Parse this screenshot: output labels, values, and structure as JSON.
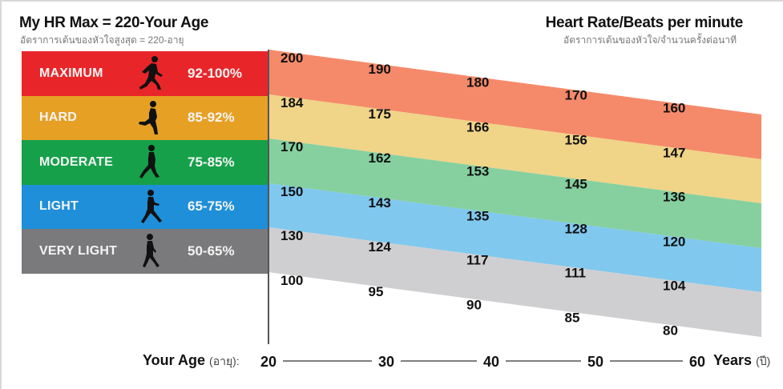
{
  "header": {
    "title": "My HR Max = 220-Your Age",
    "subtitle": "อัตราการเต้นของหัวใจสูงสุด = 220-อายุ",
    "right_title": "Heart Rate/Beats per minute",
    "right_subtitle": "อัตราการเต้นของหัวใจ/จำนวนครั้งต่อนาที"
  },
  "zones": [
    {
      "name": "MAXIMUM",
      "range": "92-100%",
      "color": "#e8262a",
      "band_color": "#f58a6a",
      "icon": "running-figure-icon"
    },
    {
      "name": "HARD",
      "range": "85-92%",
      "color": "#e6a024",
      "band_color": "#f0d488",
      "icon": "running-figure-icon"
    },
    {
      "name": "MODERATE",
      "range": "75-85%",
      "color": "#16a04a",
      "band_color": "#86d0a0",
      "icon": "jogging-figure-icon"
    },
    {
      "name": "LIGHT",
      "range": "65-75%",
      "color": "#1e8fd8",
      "band_color": "#80c8ee",
      "icon": "walking-figure-icon"
    },
    {
      "name": "VERY LIGHT",
      "range": "50-65%",
      "color": "#7a7a7c",
      "band_color": "#cfcfd1",
      "icon": "walking-figure-icon"
    }
  ],
  "chart_data": {
    "type": "area",
    "title": "Heart Rate/Beats per minute",
    "xlabel": "Your Age (อายุ):",
    "xlabel_main": "Your Age",
    "xlabel_thai": "(อายุ):",
    "x_unit_main": "Years",
    "x_unit_thai": "(ปี)",
    "x": [
      20,
      30,
      40,
      50,
      60
    ],
    "x_tick_labels": [
      "20",
      "30",
      "40",
      "50",
      "60"
    ],
    "boundaries": [
      {
        "name": "MAXIMUM top",
        "values": [
          200,
          190,
          180,
          170,
          160
        ],
        "labels": [
          "200",
          "190",
          "180",
          "170",
          "160"
        ]
      },
      {
        "name": "HARD top",
        "values": [
          184,
          175,
          166,
          156,
          147
        ],
        "labels": [
          "184",
          "175",
          "166",
          "156",
          "147"
        ]
      },
      {
        "name": "MODERATE top",
        "values": [
          170,
          162,
          153,
          145,
          136
        ],
        "labels": [
          "170",
          "162",
          "153",
          "145",
          "136"
        ]
      },
      {
        "name": "LIGHT top",
        "values": [
          150,
          143,
          135,
          128,
          120
        ],
        "labels": [
          "150",
          "143",
          "135",
          "128",
          "120"
        ]
      },
      {
        "name": "VERY LIGHT top",
        "values": [
          130,
          124,
          117,
          111,
          104
        ],
        "labels": [
          "130",
          "124",
          "117",
          "111",
          "104"
        ]
      },
      {
        "name": "VERY LIGHT bottom",
        "values": [
          100,
          95,
          90,
          85,
          80
        ],
        "labels": [
          "100",
          "95",
          "90",
          "85",
          "80"
        ]
      }
    ],
    "series": [
      {
        "name": "MAXIMUM",
        "upper": [
          200,
          190,
          180,
          170,
          160
        ],
        "lower": [
          184,
          175,
          166,
          156,
          147
        ]
      },
      {
        "name": "HARD",
        "upper": [
          184,
          175,
          166,
          156,
          147
        ],
        "lower": [
          170,
          162,
          153,
          145,
          136
        ]
      },
      {
        "name": "MODERATE",
        "upper": [
          170,
          162,
          153,
          145,
          136
        ],
        "lower": [
          150,
          143,
          135,
          128,
          120
        ]
      },
      {
        "name": "LIGHT",
        "upper": [
          150,
          143,
          135,
          128,
          120
        ],
        "lower": [
          130,
          124,
          117,
          111,
          104
        ]
      },
      {
        "name": "VERY LIGHT",
        "upper": [
          130,
          124,
          117,
          111,
          104
        ],
        "lower": [
          100,
          95,
          90,
          85,
          80
        ]
      }
    ],
    "xlim": [
      20,
      62
    ],
    "grid": false
  }
}
